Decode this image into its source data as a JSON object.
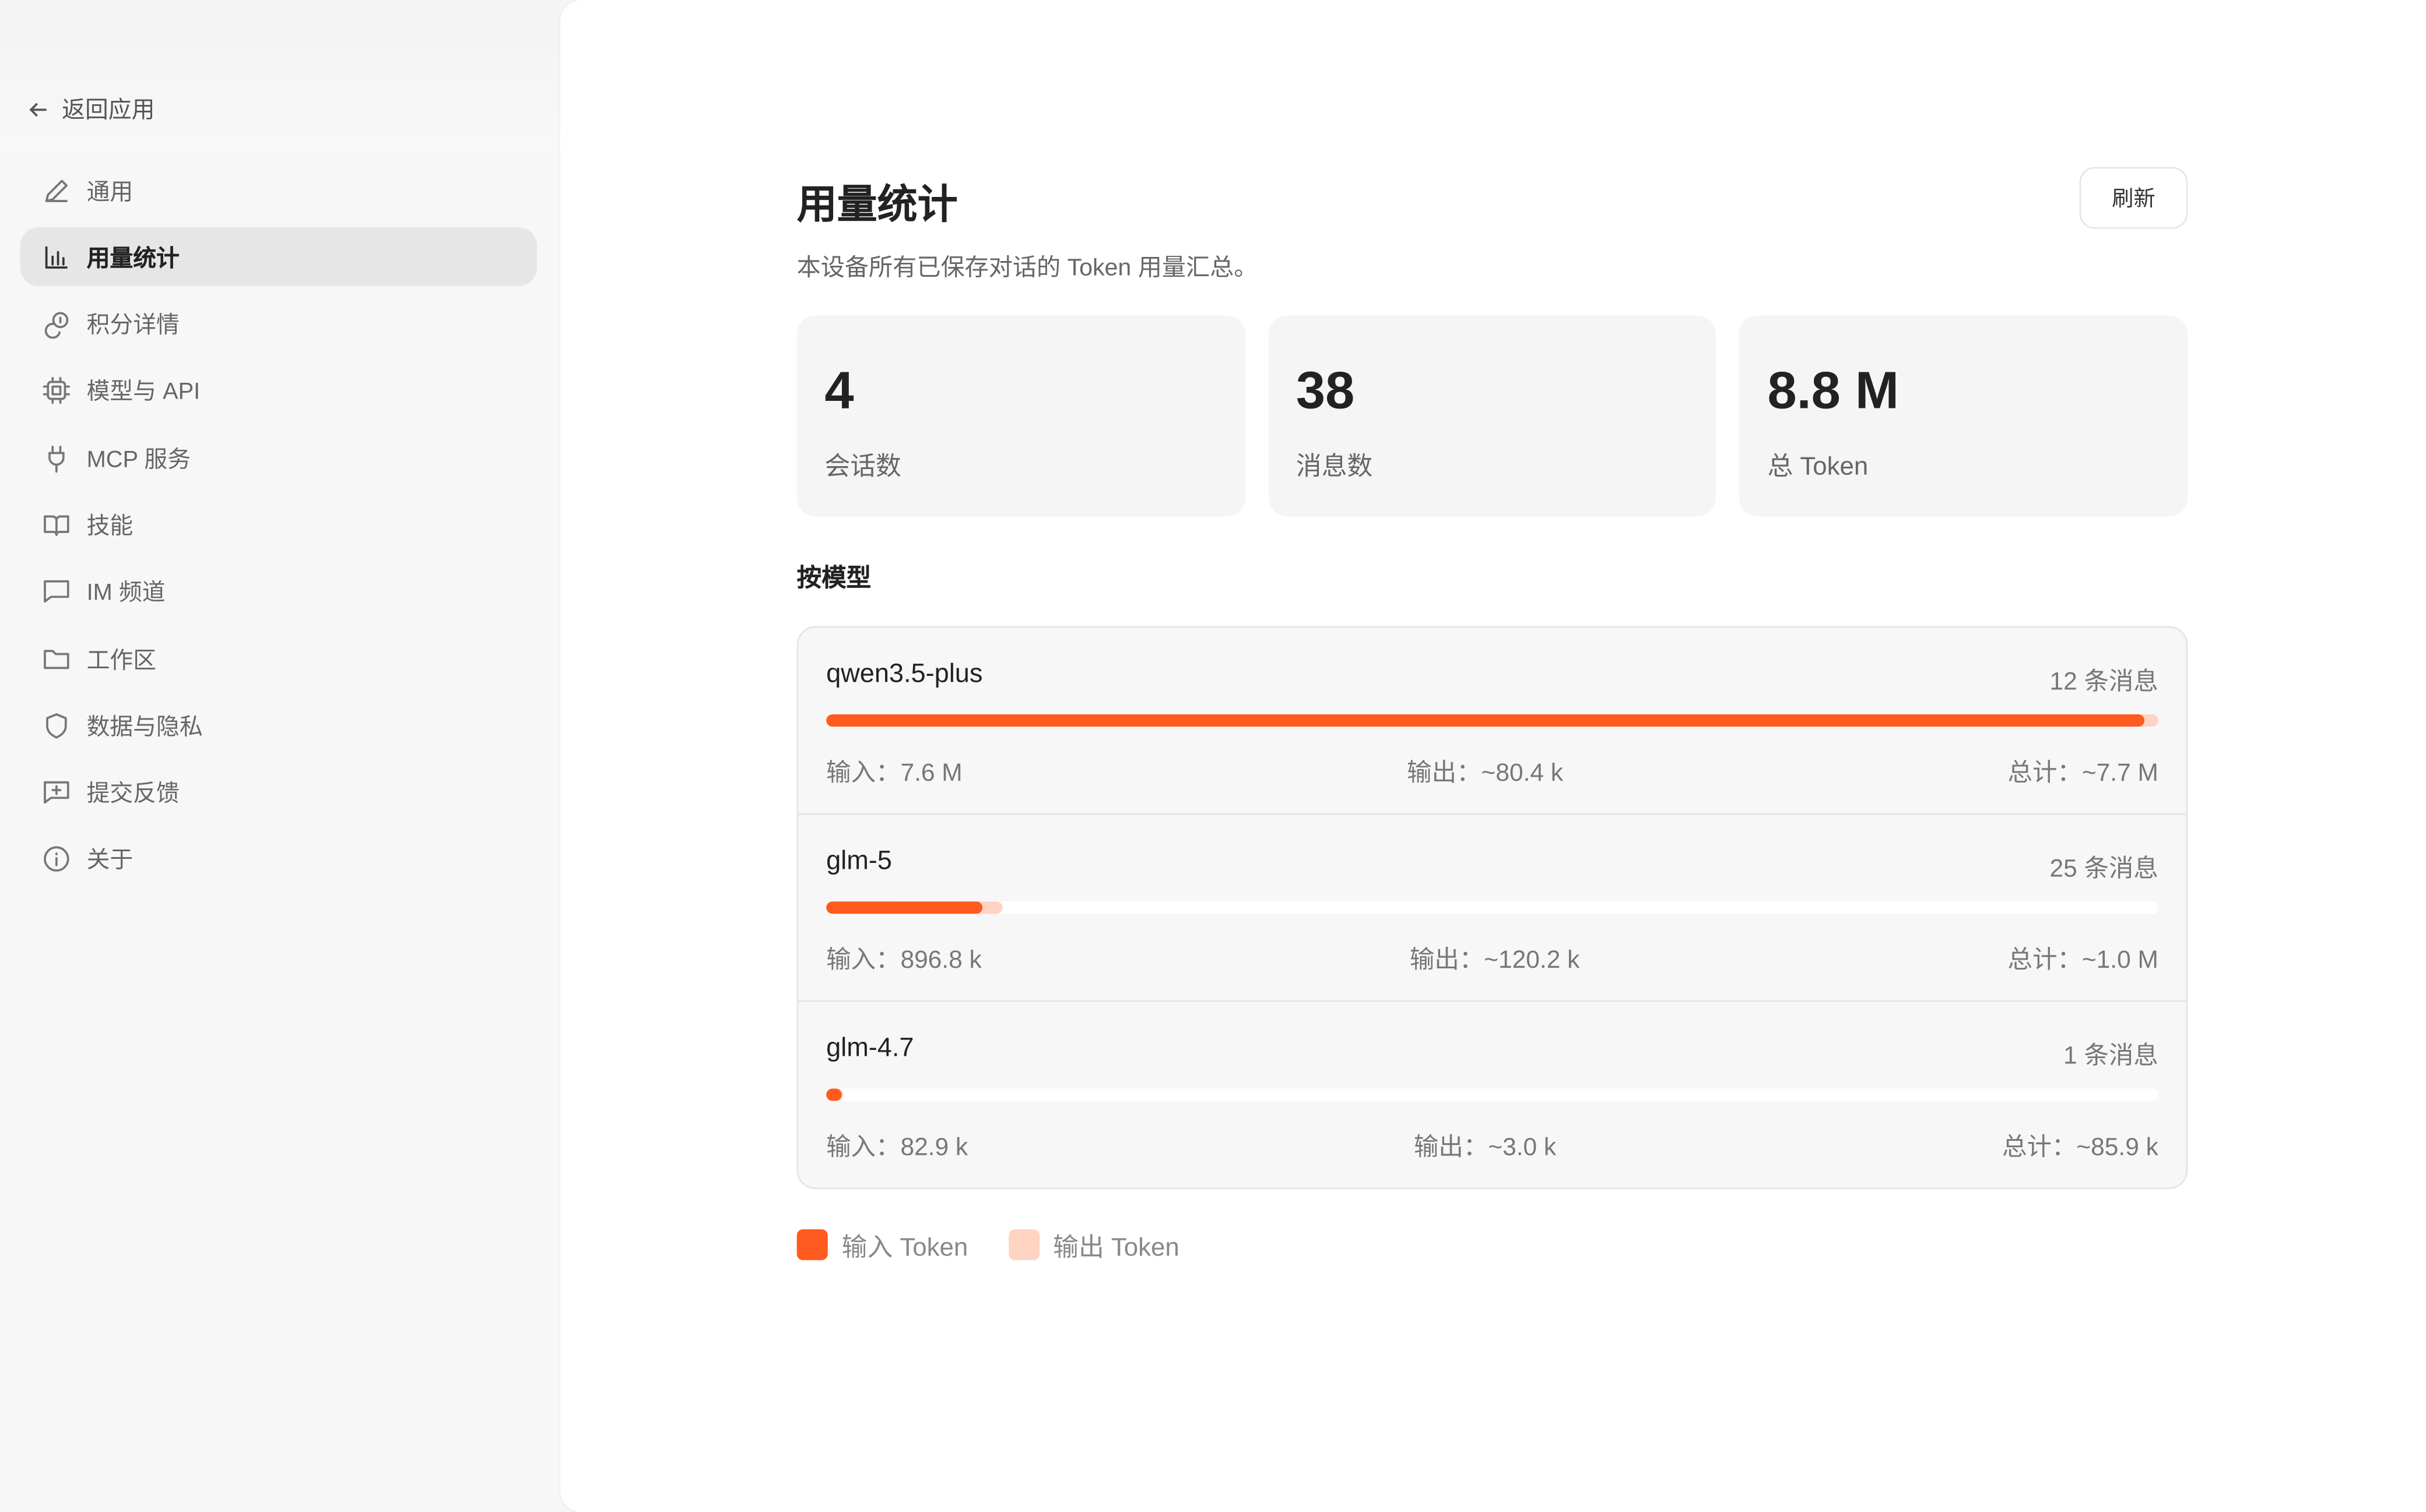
{
  "colors": {
    "accent": "#ff5a1f",
    "output": "#ffd3c2"
  },
  "sidebar": {
    "back_label": "返回应用",
    "items": [
      {
        "label": "通用",
        "icon": "pencil-icon"
      },
      {
        "label": "用量统计",
        "icon": "bar-chart-icon",
        "active": true
      },
      {
        "label": "积分详情",
        "icon": "coins-icon"
      },
      {
        "label": "模型与 API",
        "icon": "chip-icon"
      },
      {
        "label": "MCP 服务",
        "icon": "plug-icon"
      },
      {
        "label": "技能",
        "icon": "book-icon"
      },
      {
        "label": "IM 频道",
        "icon": "message-icon"
      },
      {
        "label": "工作区",
        "icon": "folder-icon"
      },
      {
        "label": "数据与隐私",
        "icon": "shield-icon"
      },
      {
        "label": "提交反馈",
        "icon": "message-plus-icon"
      },
      {
        "label": "关于",
        "icon": "info-icon"
      }
    ]
  },
  "main": {
    "title": "用量统计",
    "refresh_label": "刷新",
    "subtitle": "本设备所有已保存对话的 Token 用量汇总。",
    "cards": [
      {
        "value": "4",
        "label": "会话数"
      },
      {
        "value": "38",
        "label": "消息数"
      },
      {
        "value": "8.8 M",
        "label": "总 Token"
      }
    ],
    "section_title": "按模型",
    "models": [
      {
        "name": "qwen3.5-plus",
        "messages": "12 条消息",
        "input": "输入：7.6 M",
        "output": "输出：~80.4 k",
        "total": "总计：~7.7 M",
        "input_tokens": 7600000,
        "output_tokens": 80400
      },
      {
        "name": "glm-5",
        "messages": "25 条消息",
        "input": "输入：896.8 k",
        "output": "输出：~120.2 k",
        "total": "总计：~1.0 M",
        "input_tokens": 896800,
        "output_tokens": 120200
      },
      {
        "name": "glm-4.7",
        "messages": "1 条消息",
        "input": "输入：82.9 k",
        "output": "输出：~3.0 k",
        "total": "总计：~85.9 k",
        "input_tokens": 82900,
        "output_tokens": 3000
      }
    ],
    "legend": {
      "input": "输入 Token",
      "output": "输出 Token"
    }
  }
}
